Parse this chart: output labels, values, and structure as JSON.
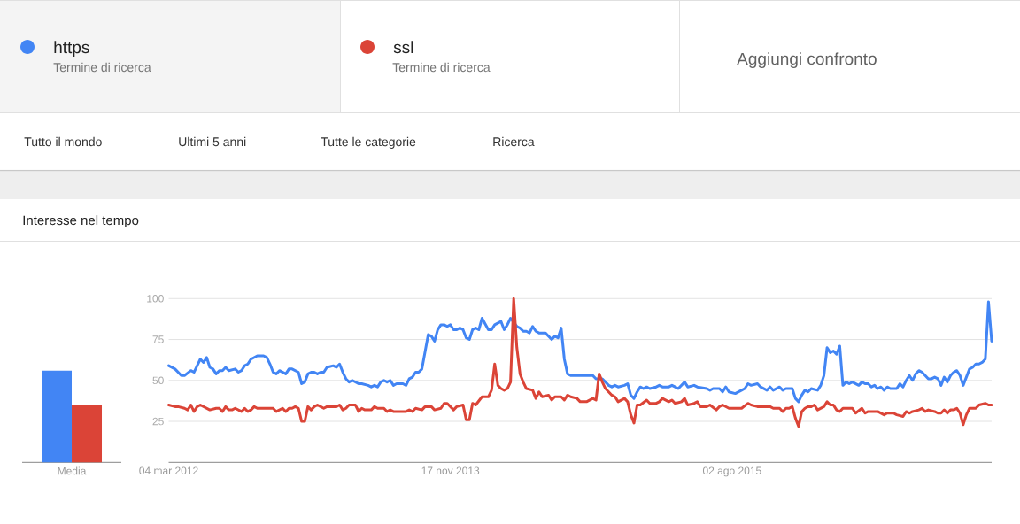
{
  "chart_data": [
    {
      "type": "bar",
      "title": "Interesse nel tempo",
      "categories": [
        "Media"
      ],
      "series": [
        {
          "color": "#4285f4",
          "values": [
            56
          ]
        },
        {
          "color": "#db4437",
          "values": [
            35
          ]
        }
      ],
      "ylim": [
        0,
        100
      ],
      "tick_labels": "x"
    },
    {
      "type": "line",
      "legend": "top",
      "annotations": [
        "Termine di ricerca",
        "Termine di ricerca",
        "Aggiungi confronto",
        "Tutto il mondo",
        "Ultimi 5 anni",
        "Tutte le categorie",
        "Ricerca"
      ],
      "xlim": [
        "2012-03-04",
        "2017-02-26"
      ],
      "xticks": [
        {
          "value": "2012-03-04",
          "label": "04 mar 2012"
        },
        {
          "value": "2013-11-17",
          "label": "17 nov 2013"
        },
        {
          "value": "2015-08-02",
          "label": "02 ago 2015"
        }
      ],
      "ylim": [
        0,
        100
      ],
      "yticks": [
        25,
        50,
        75,
        100
      ],
      "grid": "y",
      "series": [
        {
          "name": "https",
          "color": "#4285f4",
          "x": [
            "2012-03-04",
            "2012-03-18",
            "2012-04-01",
            "2012-04-08",
            "2012-04-22",
            "2012-04-29",
            "2012-05-06",
            "2012-05-13",
            "2012-05-20",
            "2012-05-27",
            "2012-06-03",
            "2012-06-10",
            "2012-06-17",
            "2012-06-24",
            "2012-07-01",
            "2012-07-08",
            "2012-07-15",
            "2012-07-29",
            "2012-08-05",
            "2012-08-12",
            "2012-08-19",
            "2012-08-26",
            "2012-09-02",
            "2012-09-09",
            "2012-09-16",
            "2012-09-30",
            "2012-10-07",
            "2012-10-14",
            "2012-10-21",
            "2012-10-28",
            "2012-11-04",
            "2012-11-11",
            "2012-11-18",
            "2012-11-25",
            "2012-12-02",
            "2012-12-09",
            "2012-12-16",
            "2012-12-23",
            "2012-12-30",
            "2013-01-06",
            "2013-01-13",
            "2013-01-20",
            "2013-01-27",
            "2013-02-03",
            "2013-02-10",
            "2013-02-17",
            "2013-03-03",
            "2013-03-10",
            "2013-03-17",
            "2013-03-24",
            "2013-03-31",
            "2013-04-07",
            "2013-04-14",
            "2013-04-28",
            "2013-05-05",
            "2013-05-19",
            "2013-05-26",
            "2013-06-02",
            "2013-06-09",
            "2013-06-16",
            "2013-06-23",
            "2013-06-30",
            "2013-07-07",
            "2013-07-14",
            "2013-07-21",
            "2013-08-04",
            "2013-08-11",
            "2013-08-18",
            "2013-08-25",
            "2013-09-01",
            "2013-09-08",
            "2013-09-15",
            "2013-09-29",
            "2013-10-06",
            "2013-10-13",
            "2013-10-20",
            "2013-10-27",
            "2013-11-03",
            "2013-11-10",
            "2013-11-17",
            "2013-11-24",
            "2013-12-01",
            "2013-12-08",
            "2013-12-15",
            "2013-12-22",
            "2013-12-29",
            "2014-01-05",
            "2014-01-12",
            "2014-01-19",
            "2014-01-26",
            "2014-02-09",
            "2014-02-16",
            "2014-02-23",
            "2014-03-09",
            "2014-03-16",
            "2014-03-23",
            "2014-03-30",
            "2014-04-13",
            "2014-04-20",
            "2014-04-27",
            "2014-05-04",
            "2014-05-11",
            "2014-05-18",
            "2014-05-25",
            "2014-06-01",
            "2014-06-15",
            "2014-06-29",
            "2014-07-06",
            "2014-07-13",
            "2014-07-20",
            "2014-07-27",
            "2014-08-03",
            "2014-08-10",
            "2014-09-28",
            "2014-10-05",
            "2014-10-19",
            "2014-10-26",
            "2014-11-02",
            "2014-11-09",
            "2014-11-16",
            "2014-11-23",
            "2014-12-07",
            "2014-12-14",
            "2014-12-21",
            "2014-12-28",
            "2015-01-04",
            "2015-01-11",
            "2015-01-18",
            "2015-01-25",
            "2015-02-01",
            "2015-02-15",
            "2015-02-22",
            "2015-03-01",
            "2015-03-15",
            "2015-03-22",
            "2015-03-29",
            "2015-04-05",
            "2015-04-19",
            "2015-04-26",
            "2015-05-10",
            "2015-05-17",
            "2015-06-07",
            "2015-06-14",
            "2015-06-21",
            "2015-07-05",
            "2015-07-12",
            "2015-07-19",
            "2015-07-26",
            "2015-08-09",
            "2015-08-23",
            "2015-08-30",
            "2015-09-06",
            "2015-09-13",
            "2015-09-27",
            "2015-10-04",
            "2015-10-18",
            "2015-10-25",
            "2015-11-01",
            "2015-11-15",
            "2015-11-22",
            "2015-11-29",
            "2015-12-13",
            "2015-12-20",
            "2015-12-27",
            "2016-01-03",
            "2016-01-10",
            "2016-01-17",
            "2016-01-24",
            "2016-02-07",
            "2016-02-14",
            "2016-02-21",
            "2016-02-28",
            "2016-03-06",
            "2016-03-13",
            "2016-03-20",
            "2016-03-27",
            "2016-04-03",
            "2016-04-10",
            "2016-04-17",
            "2016-04-24",
            "2016-05-08",
            "2016-05-15",
            "2016-05-22",
            "2016-05-29",
            "2016-06-05",
            "2016-06-12",
            "2016-06-19",
            "2016-06-26",
            "2016-07-03",
            "2016-07-10",
            "2016-07-17",
            "2016-07-31",
            "2016-08-07",
            "2016-08-14",
            "2016-08-21",
            "2016-08-28",
            "2016-09-04",
            "2016-09-11",
            "2016-09-18",
            "2016-09-25",
            "2016-10-02",
            "2016-10-09",
            "2016-10-16",
            "2016-10-23",
            "2016-10-30",
            "2016-11-06",
            "2016-11-13",
            "2016-11-20",
            "2016-11-27",
            "2016-12-04",
            "2016-12-11",
            "2016-12-18",
            "2016-12-25",
            "2017-01-01",
            "2017-01-08",
            "2017-01-15",
            "2017-01-22",
            "2017-01-29",
            "2017-02-05",
            "2017-02-12",
            "2017-02-19",
            "2017-02-26"
          ],
          "values": [
            59,
            57,
            53,
            53,
            56,
            55,
            59,
            63,
            61,
            64,
            58,
            57,
            54,
            56,
            56,
            58,
            56,
            57,
            55,
            56,
            59,
            60,
            63,
            64,
            65,
            65,
            64,
            60,
            55,
            54,
            56,
            55,
            54,
            57,
            57,
            56,
            55,
            48,
            49,
            54,
            55,
            55,
            54,
            55,
            55,
            58,
            59,
            58,
            60,
            55,
            51,
            49,
            50,
            48,
            48,
            47,
            46,
            47,
            46,
            49,
            50,
            49,
            50,
            47,
            48,
            48,
            47,
            51,
            52,
            55,
            55,
            57,
            78,
            77,
            74,
            81,
            84,
            84,
            83,
            84,
            81,
            81,
            82,
            81,
            76,
            75,
            81,
            82,
            81,
            88,
            81,
            81,
            84,
            86,
            81,
            84,
            88,
            83,
            82,
            80,
            80,
            79,
            83,
            80,
            79,
            79,
            75,
            77,
            76,
            82,
            63,
            54,
            53,
            53,
            51,
            51,
            49,
            47,
            46,
            47,
            46,
            47,
            48,
            41,
            39,
            43,
            46,
            45,
            46,
            45,
            46,
            47,
            46,
            46,
            47,
            46,
            45,
            49,
            46,
            47,
            46,
            45,
            44,
            45,
            45,
            43,
            46,
            43,
            42,
            44,
            45,
            48,
            47,
            48,
            46,
            44,
            46,
            44,
            46,
            44,
            45,
            45,
            39,
            37,
            41,
            44,
            43,
            45,
            44,
            47,
            53,
            70,
            67,
            68,
            66,
            71,
            47,
            49,
            48,
            49,
            47,
            49,
            48,
            48,
            46,
            47,
            45,
            46,
            44,
            46,
            45,
            45,
            48,
            46,
            50,
            53,
            50,
            54,
            56,
            55,
            53,
            51,
            51,
            52,
            51,
            47,
            52,
            49,
            53,
            55,
            56,
            53,
            47,
            52,
            57,
            58,
            60,
            60,
            61,
            63,
            98,
            74
          ]
        },
        {
          "name": "ssl",
          "color": "#db4437",
          "x": [
            "2012-03-04",
            "2012-03-18",
            "2012-03-25",
            "2012-04-08",
            "2012-04-15",
            "2012-04-22",
            "2012-04-29",
            "2012-05-06",
            "2012-05-13",
            "2012-05-27",
            "2012-06-03",
            "2012-06-17",
            "2012-06-24",
            "2012-07-01",
            "2012-07-08",
            "2012-07-15",
            "2012-07-22",
            "2012-07-29",
            "2012-08-12",
            "2012-08-19",
            "2012-08-26",
            "2012-09-02",
            "2012-09-09",
            "2012-09-16",
            "2012-10-21",
            "2012-10-28",
            "2012-11-11",
            "2012-11-18",
            "2012-11-25",
            "2012-12-02",
            "2012-12-09",
            "2012-12-16",
            "2012-12-23",
            "2012-12-30",
            "2013-01-06",
            "2013-01-13",
            "2013-01-20",
            "2013-01-27",
            "2013-02-03",
            "2013-02-10",
            "2013-02-17",
            "2013-03-10",
            "2013-03-17",
            "2013-03-24",
            "2013-03-31",
            "2013-04-07",
            "2013-04-21",
            "2013-04-28",
            "2013-05-05",
            "2013-05-12",
            "2013-05-26",
            "2013-06-02",
            "2013-06-09",
            "2013-06-23",
            "2013-06-30",
            "2013-07-07",
            "2013-07-14",
            "2013-07-21",
            "2013-08-11",
            "2013-08-18",
            "2013-08-25",
            "2013-09-01",
            "2013-09-15",
            "2013-09-22",
            "2013-10-06",
            "2013-10-13",
            "2013-10-27",
            "2013-11-03",
            "2013-11-10",
            "2013-11-24",
            "2013-12-01",
            "2013-12-15",
            "2013-12-22",
            "2013-12-29",
            "2014-01-05",
            "2014-01-12",
            "2014-01-26",
            "2014-02-09",
            "2014-02-16",
            "2014-02-23",
            "2014-03-02",
            "2014-03-09",
            "2014-03-16",
            "2014-03-23",
            "2014-03-30",
            "2014-04-06",
            "2014-04-13",
            "2014-04-20",
            "2014-04-27",
            "2014-05-04",
            "2014-05-18",
            "2014-05-25",
            "2014-06-01",
            "2014-06-08",
            "2014-06-22",
            "2014-06-29",
            "2014-07-06",
            "2014-07-20",
            "2014-07-27",
            "2014-08-03",
            "2014-08-10",
            "2014-08-24",
            "2014-08-31",
            "2014-09-14",
            "2014-09-28",
            "2014-10-05",
            "2014-10-12",
            "2014-10-19",
            "2014-10-26",
            "2014-11-09",
            "2014-11-16",
            "2014-11-23",
            "2014-12-07",
            "2014-12-14",
            "2014-12-21",
            "2014-12-28",
            "2015-01-04",
            "2015-01-11",
            "2015-01-25",
            "2015-02-01",
            "2015-02-15",
            "2015-02-22",
            "2015-03-01",
            "2015-03-08",
            "2015-03-15",
            "2015-03-22",
            "2015-03-29",
            "2015-04-12",
            "2015-04-19",
            "2015-04-26",
            "2015-05-10",
            "2015-05-17",
            "2015-05-24",
            "2015-06-07",
            "2015-06-14",
            "2015-06-28",
            "2015-07-05",
            "2015-07-12",
            "2015-07-26",
            "2015-08-23",
            "2015-09-06",
            "2015-09-13",
            "2015-09-27",
            "2015-10-25",
            "2015-11-01",
            "2015-11-15",
            "2015-11-22",
            "2015-11-29",
            "2015-12-06",
            "2015-12-13",
            "2015-12-20",
            "2015-12-27",
            "2016-01-03",
            "2016-01-10",
            "2016-01-17",
            "2016-01-24",
            "2016-01-31",
            "2016-02-07",
            "2016-02-14",
            "2016-02-21",
            "2016-02-28",
            "2016-03-06",
            "2016-03-13",
            "2016-03-20",
            "2016-03-27",
            "2016-04-03",
            "2016-04-24",
            "2016-05-01",
            "2016-05-15",
            "2016-05-22",
            "2016-05-29",
            "2016-06-19",
            "2016-07-03",
            "2016-07-10",
            "2016-07-24",
            "2016-07-31",
            "2016-08-14",
            "2016-08-21",
            "2016-08-28",
            "2016-09-04",
            "2016-09-18",
            "2016-09-25",
            "2016-10-02",
            "2016-10-09",
            "2016-10-23",
            "2016-10-30",
            "2016-11-06",
            "2016-11-13",
            "2016-11-20",
            "2016-11-27",
            "2016-12-04",
            "2016-12-11",
            "2016-12-18",
            "2016-12-25",
            "2017-01-01",
            "2017-01-08",
            "2017-01-22",
            "2017-01-29",
            "2017-02-12",
            "2017-02-19",
            "2017-02-26"
          ],
          "values": [
            35,
            34,
            34,
            33,
            32,
            35,
            31,
            34,
            35,
            33,
            32,
            33,
            33,
            31,
            34,
            32,
            32,
            33,
            31,
            33,
            31,
            32,
            34,
            33,
            33,
            31,
            33,
            31,
            33,
            33,
            34,
            33,
            25,
            25,
            34,
            32,
            34,
            35,
            34,
            33,
            34,
            34,
            35,
            32,
            33,
            35,
            35,
            31,
            33,
            32,
            32,
            34,
            33,
            33,
            31,
            32,
            31,
            31,
            31,
            32,
            31,
            33,
            32,
            34,
            34,
            32,
            33,
            36,
            36,
            32,
            34,
            35,
            26,
            26,
            36,
            35,
            40,
            40,
            44,
            60,
            47,
            45,
            44,
            45,
            49,
            100,
            70,
            54,
            49,
            45,
            44,
            39,
            43,
            40,
            41,
            38,
            40,
            40,
            38,
            41,
            40,
            39,
            37,
            37,
            39,
            38,
            54,
            49,
            45,
            41,
            40,
            37,
            39,
            37,
            29,
            24,
            35,
            35,
            38,
            36,
            36,
            37,
            39,
            38,
            37,
            38,
            36,
            37,
            39,
            35,
            36,
            37,
            34,
            34,
            35,
            32,
            34,
            35,
            33,
            33,
            36,
            35,
            34,
            34,
            33,
            33,
            31,
            33,
            33,
            34,
            27,
            22,
            31,
            33,
            34,
            34,
            35,
            32,
            33,
            34,
            37,
            35,
            35,
            32,
            31,
            33,
            33,
            30,
            33,
            30,
            31,
            31,
            29,
            30,
            30,
            29,
            28,
            31,
            30,
            31,
            32,
            33,
            31,
            32,
            31,
            30,
            30,
            32,
            30,
            32,
            32,
            33,
            30,
            23,
            29,
            33,
            33,
            35,
            36,
            35,
            35
          ]
        }
      ]
    }
  ]
}
